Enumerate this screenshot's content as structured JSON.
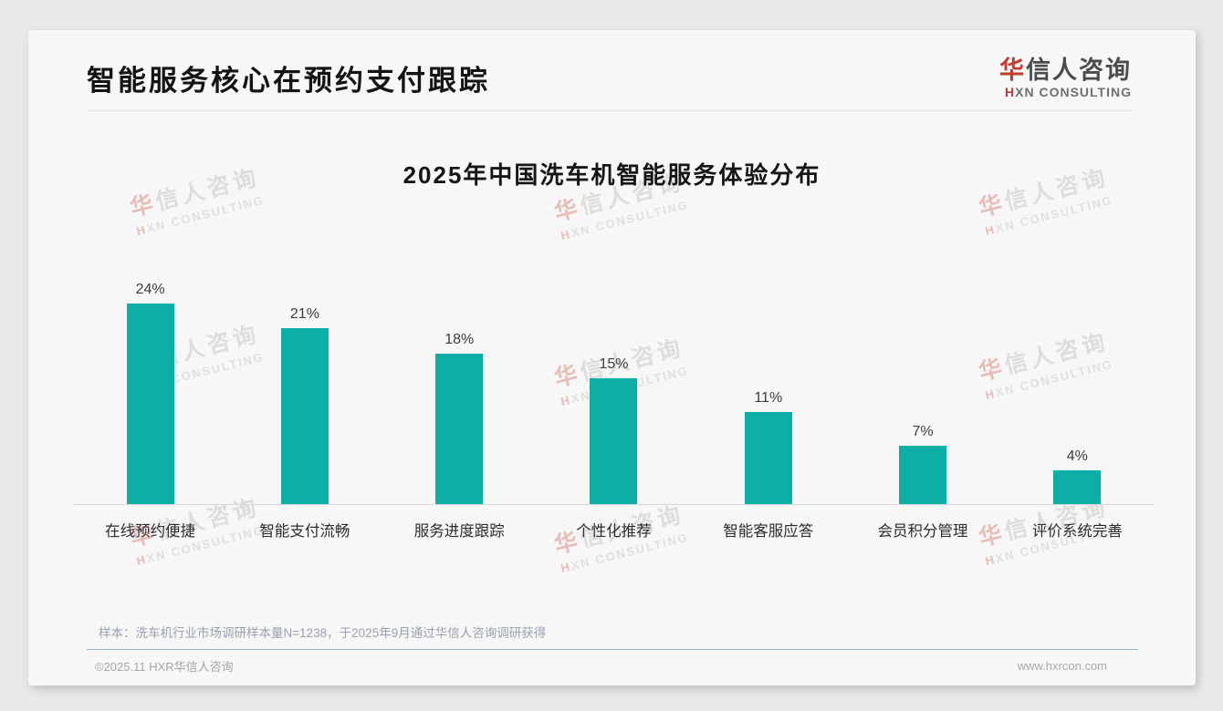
{
  "page": {
    "title": "智能服务核心在预约支付跟踪"
  },
  "logo": {
    "name_accent": "华",
    "name_rest": "信人咨询",
    "sub_accent": "H",
    "sub_rest": "XN CONSULTING",
    "accent_color": "#c6392e"
  },
  "watermark": {
    "line1_accent": "华",
    "line1_rest": "信人咨询",
    "line2_accent": "H",
    "line2_rest": "XN CONSULTING"
  },
  "chart_data": {
    "type": "bar",
    "title": "2025年中国洗车机智能服务体验分布",
    "categories": [
      "在线预约便捷",
      "智能支付流畅",
      "服务进度跟踪",
      "个性化推荐",
      "智能客服应答",
      "会员积分管理",
      "评价系统完善"
    ],
    "values": [
      24,
      21,
      18,
      15,
      11,
      7,
      4
    ],
    "unit": "%",
    "value_labels": true,
    "bar_color": "#0cafa5",
    "xlabel": "",
    "ylabel": "",
    "ylim": [
      0,
      26
    ],
    "grid": false,
    "legend": false
  },
  "footer": {
    "sample_note": "样本：洗车机行业市场调研样本量N=1238，于2025年9月通过华信人咨询调研获得",
    "copyright": "©2025.11 HXR华信人咨询",
    "website": "www.hxrcon.com"
  }
}
